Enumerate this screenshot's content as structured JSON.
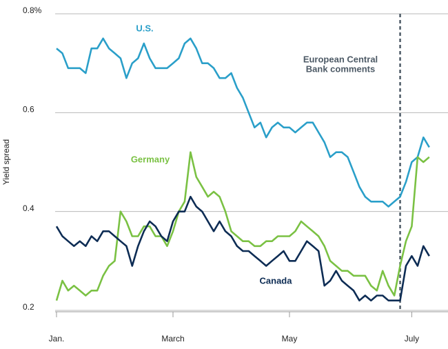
{
  "chart_data": {
    "type": "line",
    "y_label": "Yield spread",
    "categories": [
      "Jan.",
      null,
      null,
      null,
      null,
      null,
      null,
      null,
      null,
      null,
      null,
      null,
      null,
      null,
      null,
      null,
      null,
      null,
      null,
      null,
      "March",
      null,
      null,
      null,
      null,
      null,
      null,
      null,
      null,
      null,
      null,
      null,
      null,
      null,
      null,
      null,
      null,
      null,
      null,
      null,
      "May",
      null,
      null,
      null,
      null,
      null,
      null,
      null,
      null,
      null,
      null,
      null,
      null,
      null,
      null,
      null,
      null,
      null,
      null,
      null,
      null,
      "July",
      null,
      null,
      null
    ],
    "ylim": [
      0.2,
      0.8
    ],
    "yticks": [
      {
        "value": 0.8,
        "label": "0.8%"
      },
      0.6,
      0.4,
      0.2
    ],
    "grid": true,
    "event": {
      "index": 59,
      "label": [
        "European Central",
        "Bank comments"
      ]
    },
    "series": [
      {
        "name": "U.S.",
        "color": "#2a9fc9",
        "values": [
          0.73,
          0.72,
          0.69,
          0.69,
          0.69,
          0.68,
          0.73,
          0.73,
          0.75,
          0.73,
          0.72,
          0.71,
          0.67,
          0.7,
          0.71,
          0.74,
          0.71,
          0.69,
          0.69,
          0.69,
          0.7,
          0.71,
          0.74,
          0.75,
          0.73,
          0.7,
          0.7,
          0.69,
          0.67,
          0.67,
          0.68,
          0.65,
          0.63,
          0.6,
          0.57,
          0.58,
          0.55,
          0.57,
          0.58,
          0.57,
          0.57,
          0.56,
          0.57,
          0.58,
          0.58,
          0.56,
          0.54,
          0.51,
          0.52,
          0.52,
          0.51,
          0.48,
          0.45,
          0.43,
          0.42,
          0.42,
          0.42,
          0.41,
          0.42,
          0.43,
          0.46,
          0.5,
          0.51,
          0.55,
          0.53
        ]
      },
      {
        "name": "Germany",
        "color": "#7ac143",
        "values": [
          0.22,
          0.26,
          0.24,
          0.25,
          0.24,
          0.23,
          0.24,
          0.24,
          0.27,
          0.29,
          0.3,
          0.4,
          0.38,
          0.35,
          0.35,
          0.37,
          0.37,
          0.35,
          0.35,
          0.33,
          0.36,
          0.4,
          0.42,
          0.52,
          0.47,
          0.45,
          0.43,
          0.44,
          0.43,
          0.4,
          0.36,
          0.35,
          0.34,
          0.34,
          0.33,
          0.33,
          0.34,
          0.34,
          0.35,
          0.35,
          0.35,
          0.36,
          0.38,
          0.37,
          0.36,
          0.35,
          0.33,
          0.3,
          0.29,
          0.28,
          0.28,
          0.27,
          0.27,
          0.27,
          0.25,
          0.24,
          0.28,
          0.25,
          0.23,
          0.29,
          0.34,
          0.37,
          0.51,
          0.5,
          0.51
        ]
      },
      {
        "name": "Canada",
        "color": "#0d2c54",
        "values": [
          0.37,
          0.35,
          0.34,
          0.33,
          0.34,
          0.33,
          0.35,
          0.34,
          0.36,
          0.36,
          0.35,
          0.34,
          0.33,
          0.29,
          0.33,
          0.36,
          0.38,
          0.37,
          0.35,
          0.34,
          0.38,
          0.4,
          0.4,
          0.43,
          0.41,
          0.4,
          0.38,
          0.36,
          0.38,
          0.36,
          0.35,
          0.33,
          0.32,
          0.32,
          0.31,
          0.3,
          0.29,
          0.3,
          0.31,
          0.32,
          0.3,
          0.3,
          0.32,
          0.34,
          0.33,
          0.32,
          0.25,
          0.26,
          0.28,
          0.26,
          0.25,
          0.24,
          0.22,
          0.23,
          0.22,
          0.23,
          0.23,
          0.22,
          0.22,
          0.22,
          0.29,
          0.31,
          0.29,
          0.33,
          0.31
        ]
      }
    ]
  }
}
